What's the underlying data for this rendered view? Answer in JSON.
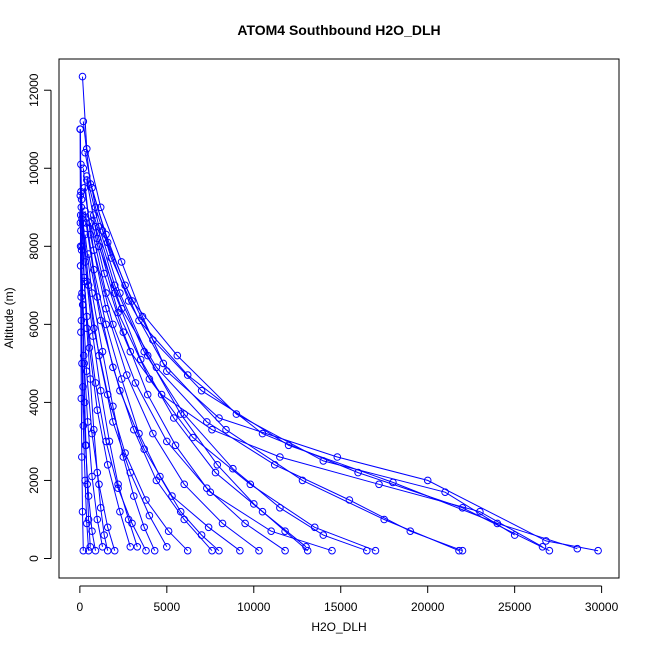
{
  "chart_data": {
    "type": "line",
    "title": "ATOM4 Southbound H2O_DLH",
    "xlabel": "H2O_DLH",
    "ylabel": "Altitude (m)",
    "xlim": [
      -1200,
      31000
    ],
    "ylim": [
      -500,
      12800
    ],
    "xticks": [
      "0",
      "5000",
      "10000",
      "15000",
      "20000",
      "25000",
      "30000"
    ],
    "yticks": [
      "0",
      "2000",
      "4000",
      "6000",
      "8000",
      "10000",
      "12000"
    ],
    "grid": false,
    "legend": "none",
    "series_color": "#0000ff",
    "marker": "open-circle",
    "series": [
      {
        "values": [
          [
            29800,
            200
          ],
          [
            26800,
            450
          ],
          [
            20000,
            2000
          ],
          [
            14800,
            2600
          ],
          [
            8000,
            3600
          ],
          [
            5000,
            4800
          ],
          [
            3600,
            6200
          ],
          [
            2400,
            7600
          ],
          [
            1200,
            9000
          ],
          [
            400,
            10500
          ],
          [
            150,
            12350
          ]
        ]
      },
      {
        "values": [
          [
            28600,
            250
          ],
          [
            24000,
            900
          ],
          [
            18000,
            1950
          ],
          [
            12000,
            2900
          ],
          [
            7000,
            4300
          ],
          [
            4200,
            5600
          ],
          [
            2600,
            7000
          ],
          [
            1500,
            8300
          ],
          [
            600,
            9600
          ],
          [
            200,
            11200
          ]
        ]
      },
      {
        "values": [
          [
            27000,
            200
          ],
          [
            22000,
            1300
          ],
          [
            16000,
            2200
          ],
          [
            10500,
            3200
          ],
          [
            6200,
            4700
          ],
          [
            3400,
            6100
          ],
          [
            1800,
            7700
          ],
          [
            900,
            9000
          ],
          [
            300,
            10400
          ]
        ]
      },
      {
        "values": [
          [
            25000,
            600
          ],
          [
            21000,
            1700
          ],
          [
            14000,
            2500
          ],
          [
            9000,
            3700
          ],
          [
            5600,
            5200
          ],
          [
            3000,
            6600
          ],
          [
            1600,
            8100
          ],
          [
            700,
            9500
          ]
        ]
      },
      {
        "values": [
          [
            21800,
            200
          ],
          [
            17500,
            1000
          ],
          [
            12800,
            2000
          ],
          [
            8400,
            3300
          ],
          [
            4800,
            5000
          ],
          [
            2800,
            6600
          ],
          [
            1300,
            8400
          ]
        ]
      },
      {
        "values": [
          [
            17000,
            200
          ],
          [
            13500,
            800
          ],
          [
            9800,
            1900
          ],
          [
            6500,
            3100
          ],
          [
            4000,
            4600
          ],
          [
            2200,
            6300
          ],
          [
            1000,
            8200
          ],
          [
            400,
            9700
          ]
        ]
      },
      {
        "values": [
          [
            14500,
            200
          ],
          [
            11000,
            700
          ],
          [
            7500,
            1700
          ],
          [
            5000,
            3000
          ],
          [
            3200,
            4500
          ],
          [
            1900,
            6000
          ],
          [
            800,
            7900
          ],
          [
            250,
            9500
          ]
        ]
      },
      {
        "values": [
          [
            13000,
            300
          ],
          [
            10500,
            1200
          ],
          [
            7800,
            2200
          ],
          [
            5400,
            3600
          ],
          [
            3500,
            5100
          ],
          [
            2000,
            6800
          ],
          [
            900,
            8500
          ]
        ]
      },
      {
        "values": [
          [
            10300,
            200
          ],
          [
            8200,
            900
          ],
          [
            6000,
            1900
          ],
          [
            4200,
            3200
          ],
          [
            2700,
            4700
          ],
          [
            1500,
            6400
          ],
          [
            600,
            8300
          ],
          [
            200,
            10000
          ]
        ]
      },
      {
        "values": [
          [
            9200,
            200
          ],
          [
            7400,
            800
          ],
          [
            5300,
            1600
          ],
          [
            3700,
            2800
          ],
          [
            2300,
            4300
          ],
          [
            1200,
            6100
          ],
          [
            500,
            7800
          ]
        ]
      },
      {
        "values": [
          [
            7600,
            200
          ],
          [
            6000,
            1000
          ],
          [
            4400,
            2000
          ],
          [
            3100,
            3300
          ],
          [
            1900,
            4900
          ],
          [
            1000,
            6700
          ],
          [
            350,
            8600
          ]
        ]
      },
      {
        "values": [
          [
            6200,
            200
          ],
          [
            5100,
            700
          ],
          [
            3800,
            1500
          ],
          [
            2600,
            2700
          ],
          [
            1600,
            4200
          ],
          [
            800,
            5900
          ],
          [
            300,
            7600
          ],
          [
            100,
            9200
          ]
        ]
      },
      {
        "values": [
          [
            5000,
            300
          ],
          [
            4000,
            1100
          ],
          [
            2900,
            2200
          ],
          [
            1900,
            3500
          ],
          [
            1100,
            5200
          ],
          [
            500,
            7000
          ],
          [
            150,
            8800
          ]
        ]
      },
      {
        "values": [
          [
            3800,
            200
          ],
          [
            3000,
            900
          ],
          [
            2200,
            1800
          ],
          [
            1500,
            3000
          ],
          [
            900,
            4500
          ],
          [
            400,
            6200
          ],
          [
            120,
            8000
          ]
        ]
      },
      {
        "values": [
          [
            2900,
            300
          ],
          [
            2300,
            1200
          ],
          [
            1600,
            2400
          ],
          [
            1000,
            3800
          ],
          [
            550,
            5400
          ],
          [
            250,
            7100
          ],
          [
            80,
            9000
          ]
        ]
      },
      {
        "values": [
          [
            2000,
            200
          ],
          [
            1600,
            800
          ],
          [
            1100,
            1900
          ],
          [
            700,
            3200
          ],
          [
            380,
            4800
          ],
          [
            180,
            6500
          ],
          [
            60,
            8400
          ]
        ]
      },
      {
        "values": [
          [
            1300,
            300
          ],
          [
            1000,
            1000
          ],
          [
            700,
            2100
          ],
          [
            450,
            3500
          ],
          [
            250,
            5000
          ],
          [
            120,
            6800
          ],
          [
            50,
            8800
          ]
        ]
      },
      {
        "values": [
          [
            900,
            200
          ],
          [
            700,
            700
          ],
          [
            500,
            1600
          ],
          [
            320,
            2900
          ],
          [
            180,
            4400
          ],
          [
            90,
            6100
          ],
          [
            40,
            8000
          ]
        ]
      },
      {
        "values": [
          [
            500,
            200
          ],
          [
            400,
            900
          ],
          [
            300,
            2000
          ],
          [
            200,
            3400
          ],
          [
            120,
            5000
          ],
          [
            70,
            6700
          ],
          [
            30,
            8600
          ]
        ]
      },
      {
        "values": [
          [
            200,
            200
          ],
          [
            150,
            1200
          ],
          [
            110,
            2600
          ],
          [
            80,
            4100
          ],
          [
            60,
            5800
          ],
          [
            40,
            7500
          ],
          [
            25,
            9300
          ],
          [
            15,
            11000
          ]
        ]
      },
      {
        "values": [
          [
            26600,
            300
          ],
          [
            23000,
            1200
          ],
          [
            17200,
            1900
          ],
          [
            11500,
            2600
          ],
          [
            7600,
            3300
          ],
          [
            4700,
            4200
          ],
          [
            2900,
            5300
          ],
          [
            1500,
            6800
          ],
          [
            600,
            8600
          ]
        ]
      },
      {
        "values": [
          [
            22000,
            200
          ],
          [
            19000,
            700
          ],
          [
            15500,
            1500
          ],
          [
            11200,
            2400
          ],
          [
            7300,
            3500
          ],
          [
            4400,
            4900
          ],
          [
            2400,
            6400
          ],
          [
            1100,
            8000
          ]
        ]
      },
      {
        "values": [
          [
            16500,
            200
          ],
          [
            14000,
            600
          ],
          [
            11500,
            1300
          ],
          [
            8800,
            2300
          ],
          [
            6000,
            3700
          ],
          [
            3700,
            5300
          ],
          [
            2000,
            7000
          ],
          [
            800,
            8800
          ]
        ]
      },
      {
        "values": [
          [
            13100,
            200
          ],
          [
            11800,
            700
          ],
          [
            10000,
            1400
          ],
          [
            7900,
            2400
          ],
          [
            5800,
            3700
          ],
          [
            3900,
            5200
          ],
          [
            2300,
            6800
          ],
          [
            1100,
            8500
          ],
          [
            400,
            9800
          ]
        ]
      },
      {
        "values": [
          [
            11800,
            200
          ],
          [
            9500,
            900
          ],
          [
            7300,
            1800
          ],
          [
            5500,
            2900
          ],
          [
            3900,
            4200
          ],
          [
            2500,
            5800
          ],
          [
            1400,
            7300
          ],
          [
            600,
            8800
          ]
        ]
      },
      {
        "values": [
          [
            8000,
            200
          ],
          [
            7000,
            600
          ],
          [
            5800,
            1200
          ],
          [
            4600,
            2100
          ],
          [
            3400,
            3200
          ],
          [
            2400,
            4600
          ],
          [
            1500,
            6000
          ],
          [
            800,
            7400
          ],
          [
            300,
            8900
          ]
        ]
      },
      {
        "values": [
          [
            4300,
            200
          ],
          [
            3700,
            800
          ],
          [
            3100,
            1600
          ],
          [
            2500,
            2600
          ],
          [
            1900,
            3900
          ],
          [
            1300,
            5300
          ],
          [
            700,
            6800
          ],
          [
            300,
            8300
          ]
        ]
      },
      {
        "values": [
          [
            3300,
            300
          ],
          [
            2800,
            1000
          ],
          [
            2200,
            1900
          ],
          [
            1700,
            3000
          ],
          [
            1200,
            4300
          ],
          [
            750,
            5700
          ],
          [
            400,
            7100
          ],
          [
            150,
            8600
          ]
        ]
      },
      {
        "values": [
          [
            1600,
            200
          ],
          [
            1400,
            600
          ],
          [
            1200,
            1300
          ],
          [
            1000,
            2200
          ],
          [
            800,
            3300
          ],
          [
            600,
            4600
          ],
          [
            400,
            5900
          ],
          [
            250,
            7200
          ],
          [
            120,
            8700
          ],
          [
            60,
            10100
          ]
        ]
      },
      {
        "values": [
          [
            600,
            300
          ],
          [
            500,
            1000
          ],
          [
            420,
            1900
          ],
          [
            350,
            2900
          ],
          [
            280,
            4000
          ],
          [
            220,
            5200
          ],
          [
            160,
            6500
          ],
          [
            100,
            7900
          ],
          [
            60,
            9400
          ],
          [
            30,
            11000
          ]
        ]
      }
    ]
  }
}
